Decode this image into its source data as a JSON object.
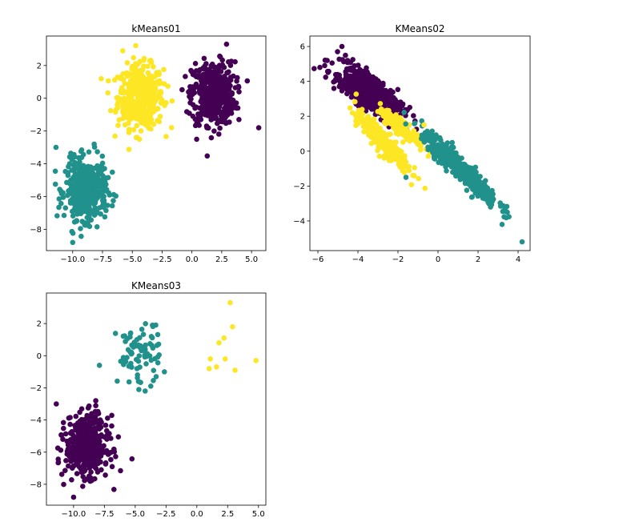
{
  "colors": {
    "purple": "#440154",
    "teal": "#21918c",
    "yellow": "#fde725",
    "axis": "#000000",
    "background": "#ffffff"
  },
  "chart_data": [
    {
      "type": "scatter",
      "title": "kMeans01",
      "xlabel": "",
      "ylabel": "",
      "xlim": [
        -12.2,
        6.2
      ],
      "ylim": [
        -9.3,
        3.8
      ],
      "xticks": [
        -10.0,
        -7.5,
        -5.0,
        -2.5,
        0.0,
        2.5,
        5.0
      ],
      "xtick_labels": [
        "−10.0",
        "−7.5",
        "−5.0",
        "−2.5",
        "0.0",
        "2.5",
        "5.0"
      ],
      "yticks": [
        2,
        0,
        -2,
        -4,
        -6,
        -8
      ],
      "ytick_labels": [
        "2",
        "0",
        "−2",
        "−4",
        "−6",
        "−8"
      ],
      "grid": false,
      "legend": "none",
      "clusters": [
        {
          "color": "yellow",
          "center": [
            -4.3,
            0.1
          ],
          "spread": [
            0.95,
            0.95
          ],
          "count": 480
        },
        {
          "color": "purple",
          "center": [
            1.8,
            0.3
          ],
          "spread": [
            0.9,
            0.95
          ],
          "count": 480
        },
        {
          "color": "teal",
          "center": [
            -8.9,
            -5.6
          ],
          "spread": [
            0.85,
            0.9
          ],
          "count": 480
        }
      ],
      "points": [
        {
          "x": 5.6,
          "y": -1.8,
          "color": "purple"
        },
        {
          "x": 2.9,
          "y": 3.3,
          "color": "purple"
        },
        {
          "x": -11.4,
          "y": -3.0,
          "color": "teal"
        },
        {
          "x": -10.0,
          "y": -8.8,
          "color": "teal"
        },
        {
          "x": -4.4,
          "y": -2.5,
          "color": "yellow"
        },
        {
          "x": -5.8,
          "y": 2.9,
          "color": "yellow"
        },
        {
          "x": 0.4,
          "y": -2.5,
          "color": "purple"
        },
        {
          "x": -8.2,
          "y": -2.8,
          "color": "teal"
        }
      ]
    },
    {
      "type": "scatter",
      "title": "KMeans02",
      "xlabel": "",
      "ylabel": "",
      "xlim": [
        -6.4,
        4.6
      ],
      "ylim": [
        -5.7,
        6.6
      ],
      "xticks": [
        -6,
        -4,
        -2,
        0,
        2,
        4
      ],
      "xtick_labels": [
        "−6",
        "−4",
        "−2",
        "0",
        "2",
        "4"
      ],
      "yticks": [
        6,
        4,
        2,
        0,
        -2,
        -4
      ],
      "ytick_labels": [
        "6",
        "4",
        "2",
        "0",
        "−2",
        "−4"
      ],
      "grid": false,
      "legend": "none",
      "clusters": [
        {
          "color": "purple",
          "center": [
            -3.7,
            3.1
          ],
          "spread": [
            0.75,
            0.7
          ],
          "count": 300,
          "covariance": -0.9
        },
        {
          "color": "purple",
          "center": [
            -3.2,
            3.7
          ],
          "spread": [
            0.75,
            0.7
          ],
          "count": 300,
          "covariance": -0.9
        },
        {
          "color": "yellow",
          "center": [
            -2.8,
            0.6
          ],
          "spread": [
            0.65,
            0.8
          ],
          "count": 300,
          "covariance": -0.9
        },
        {
          "color": "yellow",
          "center": [
            -1.8,
            1.3
          ],
          "spread": [
            0.55,
            0.55
          ],
          "count": 150,
          "covariance": -0.9
        },
        {
          "color": "teal",
          "center": [
            1.1,
            -1.0
          ],
          "spread": [
            0.95,
            1.05
          ],
          "count": 480,
          "covariance": -0.95
        }
      ],
      "points": [
        {
          "x": -5.9,
          "y": 4.8,
          "color": "purple"
        },
        {
          "x": -4.8,
          "y": 6.0,
          "color": "purple"
        },
        {
          "x": -5.2,
          "y": 3.6,
          "color": "purple"
        },
        {
          "x": 4.2,
          "y": -5.2,
          "color": "teal"
        },
        {
          "x": 3.2,
          "y": -4.2,
          "color": "teal"
        },
        {
          "x": -1.6,
          "y": -1.5,
          "color": "teal"
        },
        {
          "x": -0.7,
          "y": 1.5,
          "color": "yellow"
        }
      ]
    },
    {
      "type": "scatter",
      "title": "KMeans03",
      "xlabel": "",
      "ylabel": "",
      "xlim": [
        -12.2,
        5.6
      ],
      "ylim": [
        -9.3,
        3.9
      ],
      "xticks": [
        -10.0,
        -7.5,
        -5.0,
        -2.5,
        0.0,
        2.5,
        5.0
      ],
      "xtick_labels": [
        "−10.0",
        "−7.5",
        "−5.0",
        "−2.5",
        "0.0",
        "2.5",
        "5.0"
      ],
      "yticks": [
        2,
        0,
        -2,
        -4,
        -6,
        -8
      ],
      "ytick_labels": [
        "2",
        "0",
        "−2",
        "−4",
        "−6",
        "−8"
      ],
      "grid": false,
      "legend": "none",
      "clusters": [
        {
          "color": "purple",
          "center": [
            -8.9,
            -5.6
          ],
          "spread": [
            0.85,
            0.9
          ],
          "count": 480
        },
        {
          "color": "teal",
          "center": [
            -4.7,
            0.1
          ],
          "spread": [
            0.9,
            0.95
          ],
          "count": 80
        }
      ],
      "points": [
        {
          "x": 2.7,
          "y": 3.3,
          "color": "yellow"
        },
        {
          "x": 2.9,
          "y": 1.8,
          "color": "yellow"
        },
        {
          "x": 2.2,
          "y": 1.1,
          "color": "yellow"
        },
        {
          "x": 1.8,
          "y": 0.8,
          "color": "yellow"
        },
        {
          "x": 2.3,
          "y": -0.2,
          "color": "yellow"
        },
        {
          "x": 1.6,
          "y": -0.7,
          "color": "yellow"
        },
        {
          "x": 1.1,
          "y": -0.2,
          "color": "yellow"
        },
        {
          "x": 1.0,
          "y": -0.8,
          "color": "yellow"
        },
        {
          "x": 3.1,
          "y": -0.9,
          "color": "yellow"
        },
        {
          "x": 4.8,
          "y": -0.3,
          "color": "yellow"
        },
        {
          "x": -11.4,
          "y": -3.0,
          "color": "purple"
        },
        {
          "x": -10.0,
          "y": -8.8,
          "color": "purple"
        },
        {
          "x": -8.2,
          "y": -2.8,
          "color": "purple"
        },
        {
          "x": -3.3,
          "y": -1.3,
          "color": "teal"
        },
        {
          "x": -3.6,
          "y": 1.9,
          "color": "teal"
        },
        {
          "x": -7.9,
          "y": -0.6,
          "color": "teal"
        },
        {
          "x": -4.7,
          "y": -2.1,
          "color": "teal"
        }
      ]
    }
  ]
}
